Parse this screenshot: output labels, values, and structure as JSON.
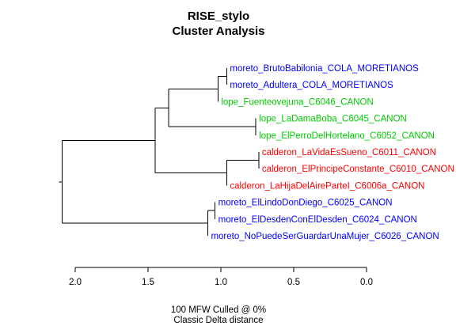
{
  "chart_data": {
    "type": "dendrogram",
    "title": "RISE_stylo",
    "subtitle": "Cluster Analysis",
    "xlabel_line1": "100 MFW  Culled @ 0%",
    "xlabel_line2": "Classic Delta distance",
    "xlim": [
      2.1,
      0.0
    ],
    "xticks": [
      "2.0",
      "1.5",
      "1.0",
      "0.5",
      "0.0"
    ],
    "xtick_values": [
      2.0,
      1.5,
      1.0,
      0.5,
      0.0
    ],
    "colors": {
      "moretiano": "#0000ff",
      "lope": "#00cc00",
      "calderon": "#ff0000"
    },
    "leaves": [
      {
        "label": "moreto_BrutoBabilonia_COLA_MORETIANOS",
        "group": "moretiano"
      },
      {
        "label": "moreto_Adultera_COLA_MORETIANOS",
        "group": "moretiano"
      },
      {
        "label": "lope_Fuenteovejuna_C6046_CANON",
        "group": "lope"
      },
      {
        "label": "lope_LaDamaBoba_C6045_CANON",
        "group": "lope"
      },
      {
        "label": "lope_ElPerroDelHortelano_C6052_CANON",
        "group": "lope"
      },
      {
        "label": "calderon_LaVidaEsSueno_C6011_CANON",
        "group": "calderon"
      },
      {
        "label": "calderon_ElPrincipeConstante_C6010_CANON",
        "group": "calderon"
      },
      {
        "label": "calderon_LaHijaDelAireParteI_C6006a_CANON",
        "group": "calderon"
      },
      {
        "label": "moreto_ElLindoDonDiego_C6025_CANON",
        "group": "moretiano"
      },
      {
        "label": "moreto_ElDesdenConElDesden_C6024_CANON",
        "group": "moretiano"
      },
      {
        "label": "moreto_NoPuedeSerGuardarUnaMujer_C6026_CANON",
        "group": "moretiano"
      }
    ],
    "merges": [
      {
        "a": "L0",
        "b": "L1",
        "height": 0.96
      },
      {
        "a": "L3",
        "b": "L4",
        "height": 0.76
      },
      {
        "a": "L5",
        "b": "L6",
        "height": 0.74
      },
      {
        "a": "L8",
        "b": "L9",
        "height": 1.04
      },
      {
        "a": "M0",
        "b": "L2",
        "height": 1.02
      },
      {
        "a": "M2",
        "b": "L7",
        "height": 0.96
      },
      {
        "a": "M3",
        "b": "L10",
        "height": 1.09
      },
      {
        "a": "M4",
        "b": "M1",
        "height": 1.36
      },
      {
        "a": "M7",
        "b": "M5",
        "height": 1.45
      },
      {
        "a": "M8",
        "b": "M6",
        "height": 2.09
      }
    ]
  }
}
